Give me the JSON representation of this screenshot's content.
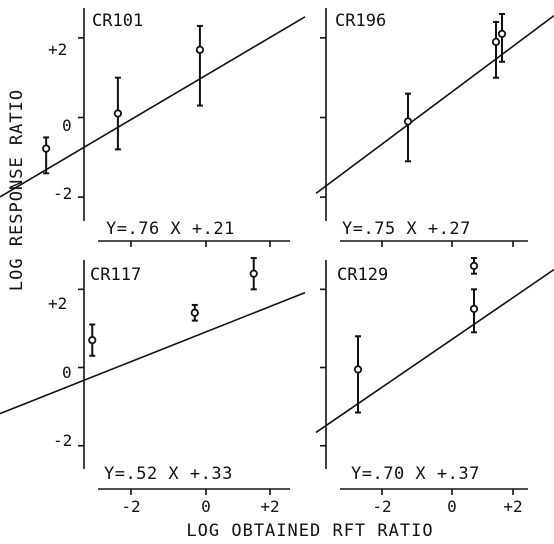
{
  "figure": {
    "ylabel": "LOG RESPONSE RATIO",
    "xlabel": "LOG OBTAINED RFT RATIO",
    "y_ticks": [
      "+2",
      "0",
      "-2"
    ],
    "x_ticks": [
      "-2",
      "0",
      "+2"
    ]
  },
  "chart_data": [
    {
      "type": "scatter",
      "title": "CR101",
      "equation": "Y=.76 X +.21",
      "slope": 0.76,
      "intercept": 0.21,
      "xlim": [
        -2.9,
        3.05
      ],
      "ylim": [
        -2.8,
        2.75
      ],
      "points": [
        {
          "x": -2.0,
          "y": -0.78,
          "lo": -1.4,
          "hi": -0.5
        },
        {
          "x": -0.6,
          "y": 0.1,
          "lo": -0.8,
          "hi": 1.0
        },
        {
          "x": 1.0,
          "y": 1.7,
          "lo": 0.3,
          "hi": 2.3
        }
      ]
    },
    {
      "type": "scatter",
      "title": "CR196",
      "equation": "Y=.75 X +.27",
      "slope": 0.75,
      "intercept": 0.27,
      "xlim": [
        -2.9,
        3.05
      ],
      "ylim": [
        -2.8,
        2.75
      ],
      "points": [
        {
          "x": -0.6,
          "y": -0.1,
          "lo": -1.1,
          "hi": 0.6
        },
        {
          "x": 1.6,
          "y": 1.9,
          "lo": 1.0,
          "hi": 2.4
        },
        {
          "x": 1.75,
          "y": 2.1,
          "lo": 1.4,
          "hi": 2.6
        }
      ]
    },
    {
      "type": "scatter",
      "title": "CR117",
      "equation": "Y=.52 X +.33",
      "slope": 0.52,
      "intercept": 0.33,
      "xlim": [
        -2.9,
        3.05
      ],
      "ylim": [
        -2.8,
        2.75
      ],
      "points": [
        {
          "x": -1.1,
          "y": 0.7,
          "lo": 0.3,
          "hi": 1.1
        },
        {
          "x": 0.9,
          "y": 1.4,
          "lo": 1.2,
          "hi": 1.6
        },
        {
          "x": 2.05,
          "y": 2.4,
          "lo": 2.0,
          "hi": 2.8
        }
      ]
    },
    {
      "type": "scatter",
      "title": "CR129",
      "equation": "Y=.70 X +.37",
      "slope": 0.7,
      "intercept": 0.37,
      "xlim": [
        -2.9,
        3.05
      ],
      "ylim": [
        -2.8,
        2.75
      ],
      "points": [
        {
          "x": -1.85,
          "y": -0.05,
          "lo": -1.15,
          "hi": 0.8
        },
        {
          "x": 1.05,
          "y": 2.6,
          "lo": 2.4,
          "hi": 2.8
        },
        {
          "x": 1.05,
          "y": 1.5,
          "lo": 0.9,
          "hi": 2.0
        }
      ]
    }
  ]
}
